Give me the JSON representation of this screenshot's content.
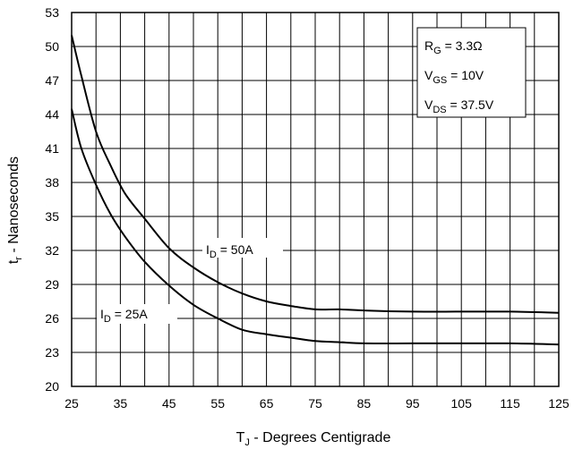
{
  "chart_data": {
    "type": "line",
    "xlabel": {
      "main": "T",
      "sub": "J",
      "rest": " - Degrees Centigrade"
    },
    "ylabel": {
      "main": "t",
      "sub": "r",
      "rest": " - Nanoseconds"
    },
    "xlim": [
      25,
      125
    ],
    "ylim": [
      20,
      53
    ],
    "xticks": [
      25,
      35,
      45,
      55,
      65,
      75,
      85,
      95,
      105,
      115,
      125
    ],
    "yticks": [
      20,
      23,
      26,
      29,
      32,
      35,
      38,
      41,
      44,
      47,
      50,
      53
    ],
    "x_minor_step": 5,
    "grid": true,
    "legend": "top-right",
    "legend_items": [
      {
        "main": "R",
        "sub": "G",
        "rest": " = 3.3Ω"
      },
      {
        "main": "V",
        "sub": "GS",
        "rest": " = 10V"
      },
      {
        "main": "V",
        "sub": "DS",
        "rest": " = 37.5V"
      }
    ],
    "series": [
      {
        "name": "I D = 50A",
        "label": {
          "main": "I",
          "sub": "D",
          "rest": " = 50A"
        },
        "x": [
          25,
          27,
          30,
          33,
          36,
          40,
          45,
          50,
          55,
          60,
          65,
          70,
          75,
          80,
          85,
          95,
          105,
          115,
          125
        ],
        "y": [
          51,
          47.4,
          42.5,
          39.5,
          37.0,
          34.8,
          32.2,
          30.5,
          29.2,
          28.2,
          27.5,
          27.1,
          26.8,
          26.8,
          26.7,
          26.6,
          26.6,
          26.6,
          26.5
        ]
      },
      {
        "name": "I D = 25A",
        "label": {
          "main": "I",
          "sub": "D",
          "rest": " = 25A"
        },
        "x": [
          25,
          27,
          30,
          33,
          36,
          40,
          45,
          50,
          55,
          60,
          65,
          70,
          75,
          80,
          85,
          95,
          105,
          115,
          125
        ],
        "y": [
          44.5,
          41.0,
          37.8,
          35.2,
          33.2,
          31.0,
          28.9,
          27.2,
          26.0,
          25.0,
          24.6,
          24.3,
          24.0,
          23.9,
          23.8,
          23.8,
          23.8,
          23.8,
          23.7
        ]
      }
    ]
  }
}
